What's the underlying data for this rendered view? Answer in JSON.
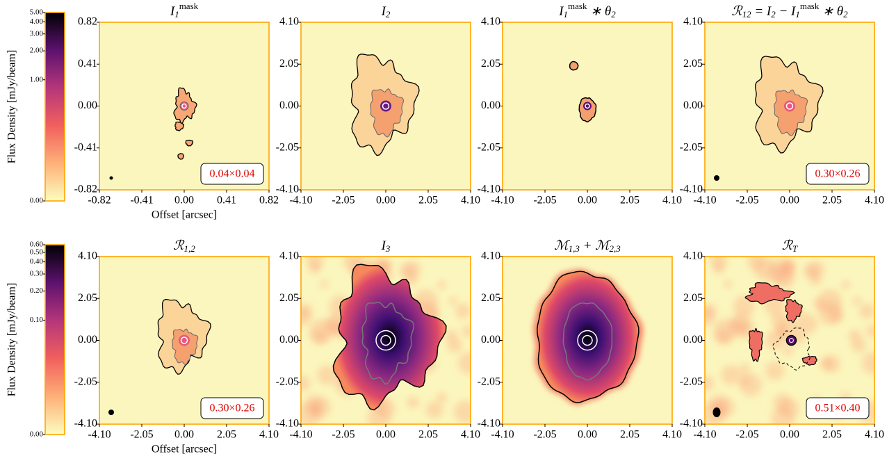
{
  "chart_data": [
    {
      "type": "image",
      "title": [
        {
          "text": "I"
        },
        {
          "text": "1",
          "shift": "sub"
        },
        {
          "text": "mask",
          "shift": "sup"
        }
      ],
      "xlim": [
        -0.82,
        0.82
      ],
      "ylim": [
        -0.82,
        0.82
      ],
      "xticks": [
        {
          "value": -0.82,
          "label": "-0.82"
        },
        {
          "value": -0.41,
          "label": "-0.41"
        },
        {
          "value": 0,
          "label": "0.00"
        },
        {
          "value": 0.41,
          "label": "0.41"
        },
        {
          "value": 0.82,
          "label": "0.82"
        }
      ],
      "yticks": [
        {
          "value": -0.82,
          "label": "-0.82"
        },
        {
          "value": -0.41,
          "label": "-0.41"
        },
        {
          "value": 0,
          "label": "0.00"
        },
        {
          "value": 0.41,
          "label": "0.41"
        },
        {
          "value": 0.82,
          "label": "0.82"
        }
      ],
      "xlabel": "Offset [arcsec]",
      "beam_label": "0.04×0.04"
    },
    {
      "type": "image",
      "title": [
        {
          "text": "I"
        },
        {
          "text": "2",
          "shift": "sub"
        }
      ],
      "xlim": [
        -4.1,
        4.1
      ],
      "ylim": [
        -4.1,
        4.1
      ],
      "xticks": [
        {
          "value": -4.1,
          "label": "-4.10"
        },
        {
          "value": -2.05,
          "label": "-2.05"
        },
        {
          "value": 0,
          "label": "0.00"
        },
        {
          "value": 2.05,
          "label": "2.05"
        },
        {
          "value": 4.1,
          "label": "4.10"
        }
      ],
      "yticks": [
        {
          "value": -4.1,
          "label": "-4.10"
        },
        {
          "value": -2.05,
          "label": "-2.05"
        },
        {
          "value": 0,
          "label": "0.00"
        },
        {
          "value": 2.05,
          "label": "2.05"
        },
        {
          "value": 4.1,
          "label": "4.10"
        }
      ]
    },
    {
      "type": "image",
      "title": [
        {
          "text": "I"
        },
        {
          "text": "1",
          "shift": "sub"
        },
        {
          "text": "mask",
          "shift": "sup"
        },
        {
          "text": " ∗ θ"
        },
        {
          "text": "2",
          "shift": "sub"
        }
      ],
      "xlim": [
        -4.1,
        4.1
      ],
      "ylim": [
        -4.1,
        4.1
      ],
      "xticks": [
        {
          "value": -4.1,
          "label": "-4.10"
        },
        {
          "value": -2.05,
          "label": "-2.05"
        },
        {
          "value": 0,
          "label": "0.00"
        },
        {
          "value": 2.05,
          "label": "2.05"
        },
        {
          "value": 4.1,
          "label": "4.10"
        }
      ],
      "yticks": [
        {
          "value": -4.1,
          "label": "-4.10"
        },
        {
          "value": -2.05,
          "label": "-2.05"
        },
        {
          "value": 0,
          "label": "0.00"
        },
        {
          "value": 2.05,
          "label": "2.05"
        },
        {
          "value": 4.1,
          "label": "4.10"
        }
      ]
    },
    {
      "type": "image",
      "title": [
        {
          "text": "ℛ"
        },
        {
          "text": "12",
          "shift": "sub"
        },
        {
          "text": " = I"
        },
        {
          "text": "2",
          "shift": "sub"
        },
        {
          "text": " − I"
        },
        {
          "text": "1",
          "shift": "sub"
        },
        {
          "text": "mask",
          "shift": "sup"
        },
        {
          "text": " ∗ θ"
        },
        {
          "text": "2",
          "shift": "sub"
        }
      ],
      "xlim": [
        -4.1,
        4.1
      ],
      "ylim": [
        -4.1,
        4.1
      ],
      "xticks": [
        {
          "value": -4.1,
          "label": "-4.10"
        },
        {
          "value": -2.05,
          "label": "-2.05"
        },
        {
          "value": 0,
          "label": "0.00"
        },
        {
          "value": 2.05,
          "label": "2.05"
        },
        {
          "value": 4.1,
          "label": "4.10"
        }
      ],
      "yticks": [
        {
          "value": -4.1,
          "label": "-4.10"
        },
        {
          "value": -2.05,
          "label": "-2.05"
        },
        {
          "value": 0,
          "label": "0.00"
        },
        {
          "value": 2.05,
          "label": "2.05"
        },
        {
          "value": 4.1,
          "label": "4.10"
        }
      ],
      "beam_label": "0.30×0.26"
    },
    {
      "type": "image",
      "title": [
        {
          "text": "ℛ"
        },
        {
          "text": "1,2",
          "shift": "sub"
        }
      ],
      "xlim": [
        -4.1,
        4.1
      ],
      "ylim": [
        -4.1,
        4.1
      ],
      "xticks": [
        {
          "value": -4.1,
          "label": "-4.10"
        },
        {
          "value": -2.05,
          "label": "-2.05"
        },
        {
          "value": 0,
          "label": "0.00"
        },
        {
          "value": 2.05,
          "label": "2.05"
        },
        {
          "value": 4.1,
          "label": "4.10"
        }
      ],
      "yticks": [
        {
          "value": -4.1,
          "label": "-4.10"
        },
        {
          "value": -2.05,
          "label": "-2.05"
        },
        {
          "value": 0,
          "label": "0.00"
        },
        {
          "value": 2.05,
          "label": "2.05"
        },
        {
          "value": 4.1,
          "label": "4.10"
        }
      ],
      "xlabel": "Offset [arcsec]",
      "beam_label": "0.30×0.26"
    },
    {
      "type": "image",
      "title": [
        {
          "text": "I"
        },
        {
          "text": "3",
          "shift": "sub"
        }
      ],
      "xlim": [
        -4.1,
        4.1
      ],
      "ylim": [
        -4.1,
        4.1
      ],
      "xticks": [
        {
          "value": -4.1,
          "label": "-4.10"
        },
        {
          "value": -2.05,
          "label": "-2.05"
        },
        {
          "value": 0,
          "label": "0.00"
        },
        {
          "value": 2.05,
          "label": "2.05"
        },
        {
          "value": 4.1,
          "label": "4.10"
        }
      ],
      "yticks": [
        {
          "value": -4.1,
          "label": "-4.10"
        },
        {
          "value": -2.05,
          "label": "-2.05"
        },
        {
          "value": 0,
          "label": "0.00"
        },
        {
          "value": 2.05,
          "label": "2.05"
        },
        {
          "value": 4.1,
          "label": "4.10"
        }
      ]
    },
    {
      "type": "image",
      "title": [
        {
          "text": "ℳ"
        },
        {
          "text": "1,3",
          "shift": "sub"
        },
        {
          "text": " + ℳ"
        },
        {
          "text": "2,3",
          "shift": "sub"
        }
      ],
      "xlim": [
        -4.1,
        4.1
      ],
      "ylim": [
        -4.1,
        4.1
      ],
      "xticks": [
        {
          "value": -4.1,
          "label": "-4.10"
        },
        {
          "value": -2.05,
          "label": "-2.05"
        },
        {
          "value": 0,
          "label": "0.00"
        },
        {
          "value": 2.05,
          "label": "2.05"
        },
        {
          "value": 4.1,
          "label": "4.10"
        }
      ],
      "yticks": [
        {
          "value": -4.1,
          "label": "-4.10"
        },
        {
          "value": -2.05,
          "label": "-2.05"
        },
        {
          "value": 0,
          "label": "0.00"
        },
        {
          "value": 2.05,
          "label": "2.05"
        },
        {
          "value": 4.1,
          "label": "4.10"
        }
      ]
    },
    {
      "type": "image",
      "title": [
        {
          "text": "ℛ"
        },
        {
          "text": "T",
          "shift": "sub"
        }
      ],
      "xlim": [
        -4.1,
        4.1
      ],
      "ylim": [
        -4.1,
        4.1
      ],
      "xticks": [
        {
          "value": -4.1,
          "label": "-4.10"
        },
        {
          "value": -2.05,
          "label": "-2.05"
        },
        {
          "value": 0,
          "label": "0.00"
        },
        {
          "value": 2.05,
          "label": "2.05"
        },
        {
          "value": 4.1,
          "label": "4.10"
        }
      ],
      "yticks": [
        {
          "value": -4.1,
          "label": "-4.10"
        },
        {
          "value": -2.05,
          "label": "-2.05"
        },
        {
          "value": 0,
          "label": "0.00"
        },
        {
          "value": 2.05,
          "label": "2.05"
        },
        {
          "value": 4.1,
          "label": "4.10"
        }
      ],
      "beam_label": "0.51×0.40"
    },
    {
      "type": "colorbar",
      "label": "Flux Density [mJy/beam]",
      "scale": "asinh",
      "clim": [
        0,
        5
      ],
      "ticks": [
        {
          "value": 0,
          "label": "0.00"
        },
        {
          "value": 1,
          "label": "1.00"
        },
        {
          "value": 2,
          "label": "2.00"
        },
        {
          "value": 3,
          "label": "3.00"
        },
        {
          "value": 4,
          "label": "4.00"
        },
        {
          "value": 5,
          "label": "5.00"
        }
      ]
    },
    {
      "type": "colorbar",
      "label": "Flux Density [mJy/beam]",
      "scale": "asinh",
      "clim": [
        0,
        0.6
      ],
      "ticks": [
        {
          "value": 0,
          "label": "0.00"
        },
        {
          "value": 0.1,
          "label": "0.10"
        },
        {
          "value": 0.2,
          "label": "0.20"
        },
        {
          "value": 0.3,
          "label": "0.30"
        },
        {
          "value": 0.4,
          "label": "0.40"
        },
        {
          "value": 0.5,
          "label": "0.50"
        },
        {
          "value": 0.6,
          "label": "0.60"
        }
      ]
    }
  ]
}
